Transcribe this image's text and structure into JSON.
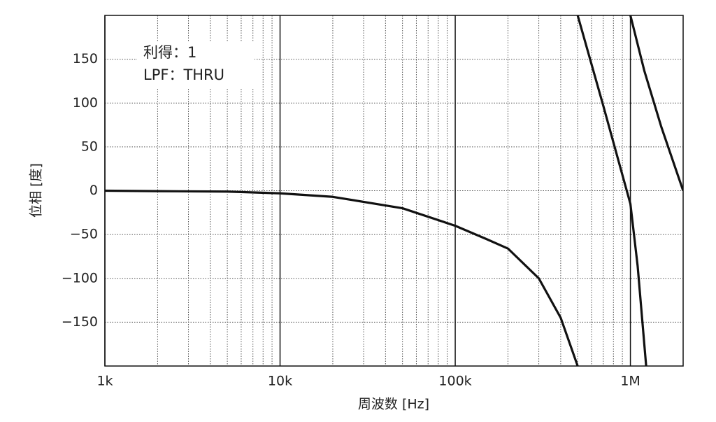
{
  "chart_data": {
    "type": "line",
    "xlabel": "周波数 [Hz]",
    "ylabel": "位相 [度]",
    "annotations": [
      "利得：1",
      "LPF：THRU"
    ],
    "log_x": true,
    "grid": true,
    "xlim": [
      1000,
      2000000
    ],
    "xticks": [
      {
        "value": 1000,
        "label": "1k"
      },
      {
        "value": 10000,
        "label": "10k"
      },
      {
        "value": 100000,
        "label": "100k"
      },
      {
        "value": 1000000,
        "label": "1M"
      }
    ],
    "xminorticks": [
      2000,
      3000,
      4000,
      5000,
      6000,
      7000,
      8000,
      9000,
      20000,
      30000,
      40000,
      50000,
      60000,
      70000,
      80000,
      90000,
      200000,
      300000,
      400000,
      500000,
      600000,
      700000,
      800000,
      900000
    ],
    "ylim": [
      -200,
      200
    ],
    "yticks": [
      {
        "value": -150,
        "label": "−150"
      },
      {
        "value": -100,
        "label": "−100"
      },
      {
        "value": -50,
        "label": "−50"
      },
      0,
      50,
      100,
      150
    ],
    "series": [
      {
        "color": "#111111",
        "x": [
          1000,
          2000,
          5000,
          10000,
          20000,
          50000,
          100000,
          150000,
          200000,
          300000,
          400000,
          500000,
          null,
          500000,
          700000,
          900000,
          1000000,
          1100000,
          1230000,
          null,
          1000000,
          1200000,
          1500000,
          2000000
        ],
        "values": [
          0,
          -0.5,
          -1,
          -3,
          -7,
          -20,
          -40,
          -55,
          -66,
          -100,
          -145,
          -200,
          null,
          200,
          97,
          18,
          -15,
          -86,
          -200,
          null,
          200,
          137,
          73,
          0
        ]
      }
    ]
  }
}
